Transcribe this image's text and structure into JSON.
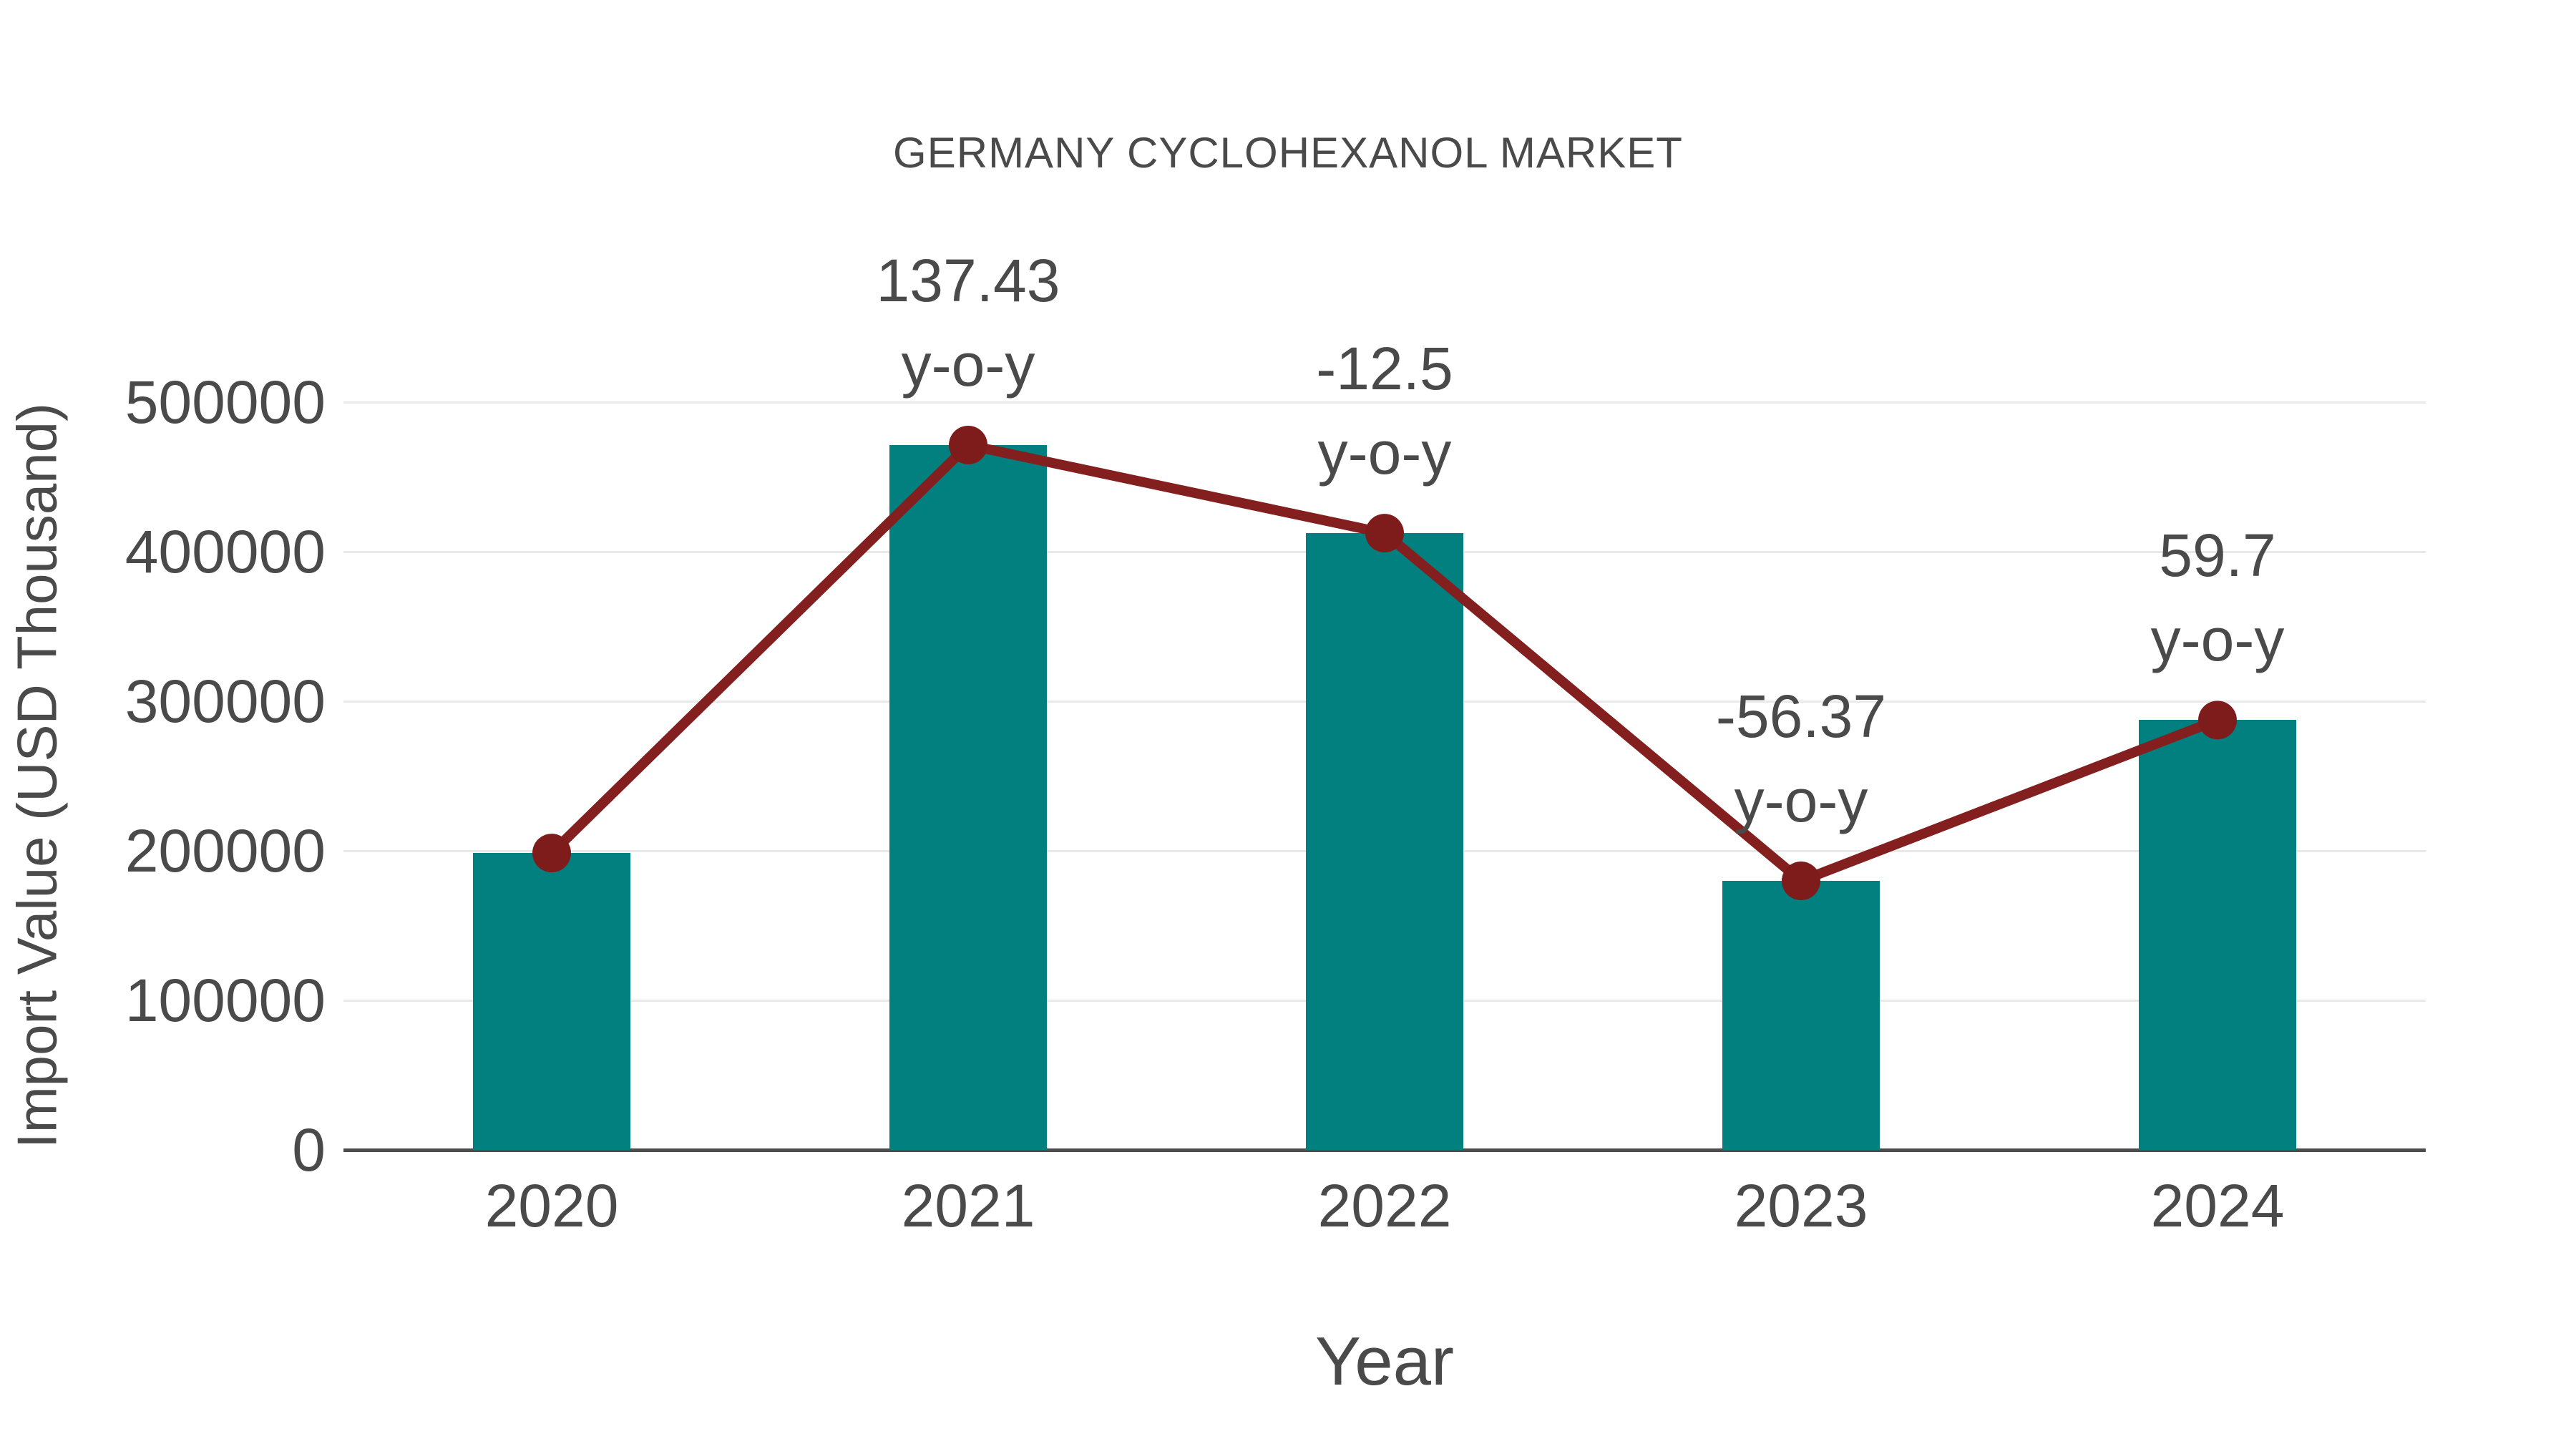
{
  "chart_data": {
    "type": "bar",
    "title": "GERMANY CYCLOHEXANOL MARKET",
    "xlabel": "Year",
    "ylabel": "Import Value (USD Thousand)",
    "categories": [
      "2020",
      "2021",
      "2022",
      "2023",
      "2024"
    ],
    "series": [
      {
        "name": "import-value-bars",
        "type": "bar",
        "color": "#028080",
        "values": [
          198500,
          471300,
          412400,
          179900,
          287400
        ]
      },
      {
        "name": "yoy-trend-line",
        "type": "line",
        "color": "#831f1f",
        "marker_color": "#7e1c1c",
        "values": [
          198500,
          471300,
          412400,
          179900,
          287400
        ],
        "annotations": [
          null,
          "137.43",
          "-12.5",
          "-56.37",
          "59.7"
        ],
        "annotation_suffix": "y-o-y"
      }
    ],
    "ylim": [
      0,
      500000
    ],
    "yticks": [
      0,
      100000,
      200000,
      300000,
      400000,
      500000
    ],
    "grid": true,
    "legend_position": "none",
    "colors": {
      "bar": "#028080",
      "line": "#831f1f",
      "marker": "#7e1c1c",
      "gridline": "#e9e9e9",
      "axis": "#4d4d4d",
      "text": "#4a4a4a"
    }
  }
}
